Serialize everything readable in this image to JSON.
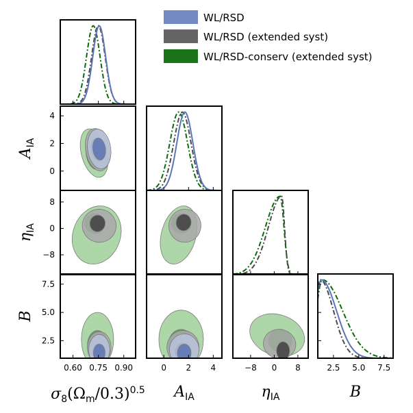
{
  "chart_data": {
    "type": "corner",
    "parameters": [
      {
        "key": "s8",
        "label_main": "σ",
        "label_sub": "8",
        "label_rest": "(Ω",
        "label_sub2": "m",
        "label_tail": "/0.3)",
        "label_sup": "0.5",
        "ticks": [
          "0.60",
          "0.75",
          "0.90"
        ],
        "tick_values": [
          0.6,
          0.75,
          0.9
        ],
        "range": [
          0.525,
          0.97
        ]
      },
      {
        "key": "AIA",
        "label_main": "A",
        "label_sub": "IA",
        "ticks": [
          "0",
          "2",
          "4"
        ],
        "tick_values": [
          0,
          2,
          4
        ],
        "range": [
          -1.4,
          4.7
        ]
      },
      {
        "key": "eta",
        "label_main": "η",
        "label_sub": "IA",
        "ticks": [
          "−8",
          "0",
          "8"
        ],
        "tick_values": [
          -8,
          0,
          8
        ],
        "range": [
          -14,
          11.5
        ]
      },
      {
        "key": "B",
        "label_main": "B",
        "label_sub": "",
        "ticks": [
          "2.5",
          "5.0",
          "7.5"
        ],
        "tick_values": [
          2.5,
          5.0,
          7.5
        ],
        "range": [
          0.95,
          8.4
        ]
      }
    ],
    "series": [
      {
        "name": "WL/RSD",
        "color": "#4a6aa8",
        "line_color": "#5a76b8",
        "inner_color": "#5c74b4",
        "outer_color": "#b8c3dc",
        "linestyle": "solid"
      },
      {
        "name": "WL/RSD (extended syst)",
        "color": "#444444",
        "line_color": "#4a4a4a",
        "inner_color": "#3e3e3e",
        "outer_color": "#a9a9a9",
        "linestyle": "dashdot"
      },
      {
        "name": "WL/RSD-conserv (extended syst)",
        "color": "#006400",
        "line_color": "#0a6a0a",
        "inner_color": "#4f9c4f",
        "outer_color": "#9fcf9a",
        "linestyle": "dashdot"
      }
    ],
    "marginals": {
      "s8": [
        {
          "series": 0,
          "peak": 0.755,
          "sigma": 0.038
        },
        {
          "series": 1,
          "peak": 0.75,
          "sigma": 0.04
        },
        {
          "series": 2,
          "peak": 0.72,
          "sigma": 0.04
        }
      ],
      "AIA": [
        {
          "series": 0,
          "peak": 1.7,
          "sigma": 0.65
        },
        {
          "series": 1,
          "peak": 1.5,
          "sigma": 0.7
        },
        {
          "series": 2,
          "peak": 1.2,
          "sigma": 0.72
        }
      ],
      "eta": [
        {
          "series": 1,
          "shape": "skew",
          "peak": 2.5,
          "left": 4.5,
          "right": 1.0
        },
        {
          "series": 2,
          "shape": "skew",
          "peak": 2.0,
          "left": 5.0,
          "right": 1.3
        }
      ],
      "B": [
        {
          "series": 0,
          "shape": "halfnorm",
          "peak": 1.3,
          "left": 0.6,
          "right": 1.5
        },
        {
          "series": 1,
          "shape": "halfnorm",
          "peak": 1.2,
          "left": 0.6,
          "right": 1.3
        },
        {
          "series": 2,
          "shape": "halfnorm",
          "peak": 1.4,
          "left": 0.6,
          "right": 2.0
        }
      ]
    },
    "contours": [
      {
        "row": 1,
        "col": 0,
        "regions": [
          {
            "series": 2,
            "level": 2,
            "cx": 0.725,
            "cy": 1.3,
            "rx": 0.075,
            "ry": 1.8,
            "rot": -15
          },
          {
            "series": 2,
            "level": 1,
            "cx": 0.72,
            "cy": 1.1,
            "rx": 0.04,
            "ry": 1.0,
            "rot": -15
          },
          {
            "series": 1,
            "level": 2,
            "cx": 0.745,
            "cy": 1.55,
            "rx": 0.07,
            "ry": 1.55,
            "rot": -10
          },
          {
            "series": 1,
            "level": 1,
            "cx": 0.748,
            "cy": 1.55,
            "rx": 0.04,
            "ry": 0.85,
            "rot": -10
          },
          {
            "series": 0,
            "level": 2,
            "cx": 0.755,
            "cy": 1.6,
            "rx": 0.068,
            "ry": 1.45,
            "rot": -8
          },
          {
            "series": 0,
            "level": 1,
            "cx": 0.755,
            "cy": 1.6,
            "rx": 0.037,
            "ry": 0.8,
            "rot": -8
          }
        ]
      },
      {
        "row": 2,
        "col": 0,
        "regions": [
          {
            "series": 2,
            "level": 2,
            "cx": 0.74,
            "cy": -2.0,
            "rx": 0.14,
            "ry": 9.0,
            "rot": 20
          },
          {
            "series": 2,
            "level": 1,
            "cx": 0.73,
            "cy": 1.5,
            "rx": 0.06,
            "ry": 3.0,
            "rot": 10
          },
          {
            "series": 1,
            "level": 2,
            "cx": 0.755,
            "cy": 0.8,
            "rx": 0.1,
            "ry": 5.0,
            "rot": 12
          },
          {
            "series": 1,
            "level": 1,
            "cx": 0.745,
            "cy": 1.5,
            "rx": 0.045,
            "ry": 2.5,
            "rot": 10
          }
        ]
      },
      {
        "row": 3,
        "col": 0,
        "regions": [
          {
            "series": 2,
            "level": 2,
            "cx": 0.745,
            "cy": 2.6,
            "rx": 0.095,
            "ry": 2.4,
            "rot": 0
          },
          {
            "series": 2,
            "level": 1,
            "cx": 0.745,
            "cy": 2.1,
            "rx": 0.06,
            "ry": 1.3,
            "rot": 0
          },
          {
            "series": 1,
            "level": 2,
            "cx": 0.755,
            "cy": 1.9,
            "rx": 0.07,
            "ry": 1.4,
            "rot": 0
          },
          {
            "series": 1,
            "level": 1,
            "cx": 0.755,
            "cy": 1.5,
            "rx": 0.04,
            "ry": 0.75,
            "rot": 0
          },
          {
            "series": 0,
            "level": 2,
            "cx": 0.755,
            "cy": 1.7,
            "rx": 0.062,
            "ry": 1.35,
            "rot": 0
          },
          {
            "series": 0,
            "level": 1,
            "cx": 0.755,
            "cy": 1.4,
            "rx": 0.034,
            "ry": 0.8,
            "rot": 0
          }
        ]
      },
      {
        "row": 2,
        "col": 1,
        "regions": [
          {
            "series": 2,
            "level": 2,
            "cx": 1.2,
            "cy": -2.0,
            "rx": 1.4,
            "ry": 9.0,
            "rot": 15
          },
          {
            "series": 2,
            "level": 1,
            "cx": 1.4,
            "cy": 1.5,
            "rx": 0.8,
            "ry": 3.0,
            "rot": 10
          },
          {
            "series": 1,
            "level": 2,
            "cx": 1.7,
            "cy": 0.8,
            "rx": 1.3,
            "ry": 5.0,
            "rot": 10
          },
          {
            "series": 1,
            "level": 1,
            "cx": 1.6,
            "cy": 1.8,
            "rx": 0.6,
            "ry": 2.5,
            "rot": 10
          }
        ]
      },
      {
        "row": 3,
        "col": 1,
        "regions": [
          {
            "series": 2,
            "level": 2,
            "cx": 1.4,
            "cy": 2.6,
            "rx": 1.8,
            "ry": 2.6,
            "rot": 0
          },
          {
            "series": 2,
            "level": 1,
            "cx": 1.4,
            "cy": 2.1,
            "rx": 1.05,
            "ry": 1.4,
            "rot": 0
          },
          {
            "series": 1,
            "level": 2,
            "cx": 1.55,
            "cy": 1.9,
            "rx": 1.3,
            "ry": 1.5,
            "rot": 0
          },
          {
            "series": 1,
            "level": 1,
            "cx": 1.55,
            "cy": 1.5,
            "rx": 0.65,
            "ry": 0.8,
            "rot": 0
          },
          {
            "series": 0,
            "level": 2,
            "cx": 1.65,
            "cy": 1.7,
            "rx": 1.2,
            "ry": 1.4,
            "rot": 0
          },
          {
            "series": 0,
            "level": 1,
            "cx": 1.65,
            "cy": 1.4,
            "rx": 0.55,
            "ry": 0.8,
            "rot": 0
          }
        ]
      },
      {
        "row": 3,
        "col": 2,
        "regions": [
          {
            "series": 2,
            "level": 2,
            "cx": 1.0,
            "cy": 3.0,
            "rx": 9.5,
            "ry": 1.8,
            "rot": 18
          },
          {
            "series": 2,
            "level": 1,
            "cx": 2.0,
            "cy": 2.5,
            "rx": 4.0,
            "ry": 1.0,
            "rot": 15
          },
          {
            "series": 1,
            "level": 2,
            "cx": 1.8,
            "cy": 2.2,
            "rx": 5.5,
            "ry": 1.3,
            "rot": 10
          },
          {
            "series": 1,
            "level": 1,
            "cx": 3.0,
            "cy": 1.6,
            "rx": 2.2,
            "ry": 0.8,
            "rot": 0
          }
        ]
      }
    ]
  }
}
